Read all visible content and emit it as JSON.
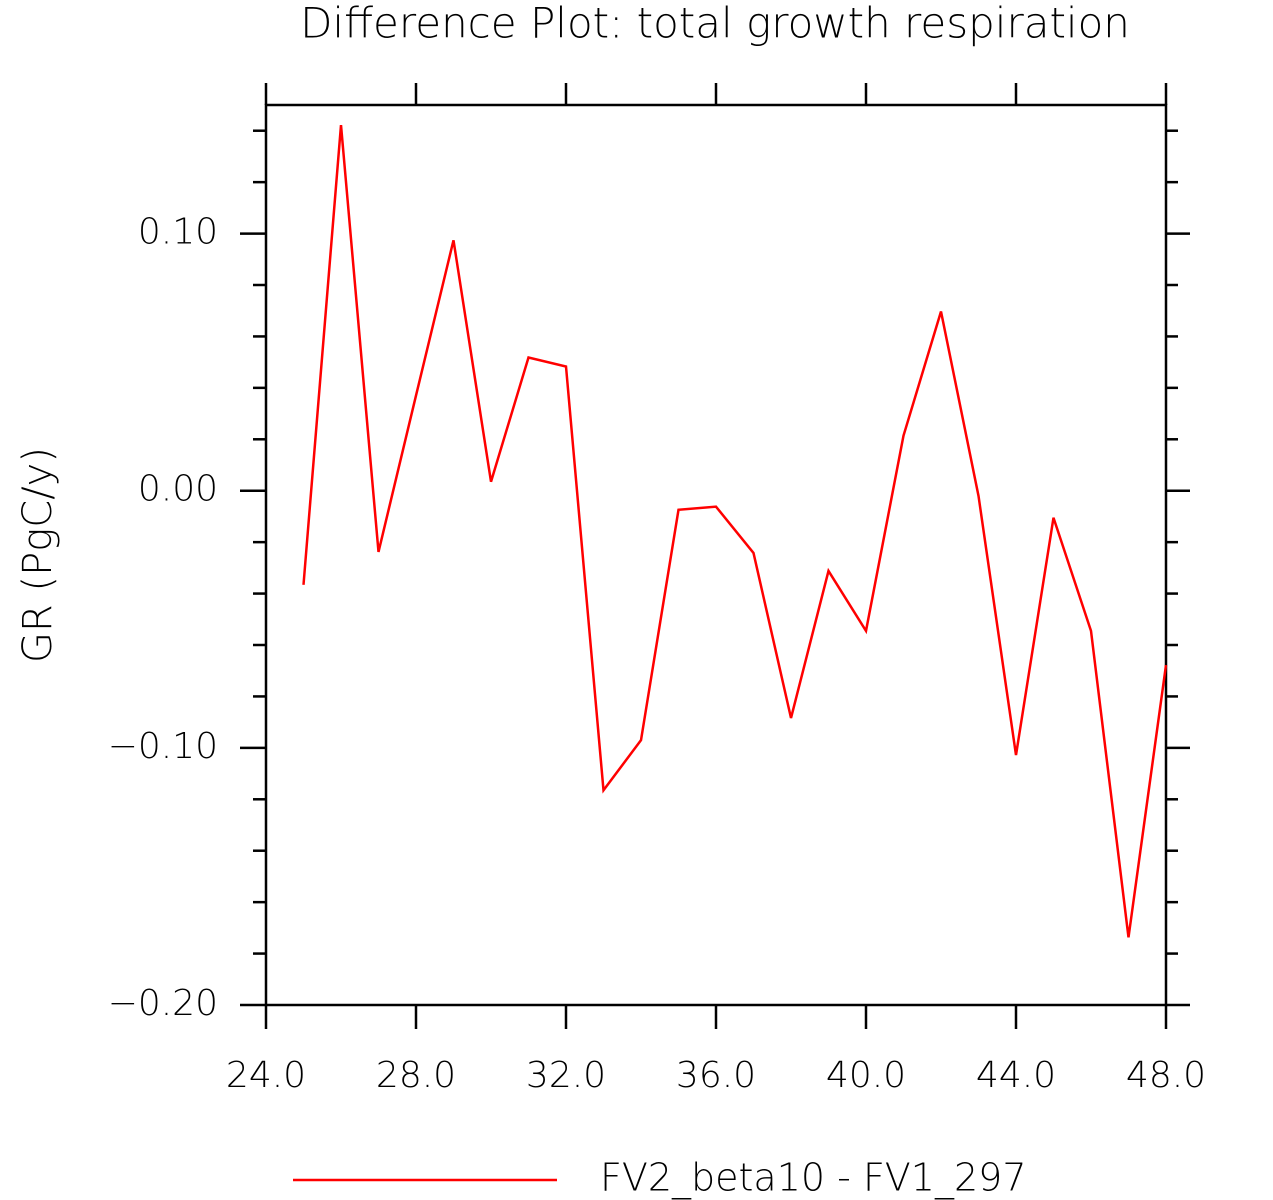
{
  "chart_data": {
    "type": "line",
    "title": "Difference Plot: total growth respiration",
    "y_label": "GR  (PgC/y)",
    "x": [
      25,
      26,
      27,
      28,
      29,
      30,
      31,
      32,
      33,
      34,
      35,
      36,
      37,
      38,
      39,
      40,
      41,
      42,
      43,
      44,
      45,
      46,
      47,
      48
    ],
    "series": [
      {
        "name": "FV2_beta10 - FV1_297",
        "color": "#ff0000",
        "values": [
          -0.0366,
          0.1422,
          -0.0238,
          0.037,
          0.0974,
          0.0035,
          0.0518,
          0.0483,
          -0.1165,
          -0.097,
          -0.0074,
          -0.0062,
          -0.0242,
          -0.0884,
          -0.0312,
          -0.0545,
          0.0214,
          0.0697,
          -0.002,
          -0.1028,
          -0.0105,
          -0.0545,
          -0.1737,
          -0.0678
        ]
      }
    ],
    "xlim": [
      24,
      48
    ],
    "xticks": [
      {
        "value": 24,
        "label": "24.0"
      },
      {
        "value": 28,
        "label": "28.0"
      },
      {
        "value": 32,
        "label": "32.0"
      },
      {
        "value": 36,
        "label": "36.0"
      },
      {
        "value": 40,
        "label": "40.0"
      },
      {
        "value": 44,
        "label": "44.0"
      },
      {
        "value": 48,
        "label": "48.0"
      }
    ],
    "ylim": [
      -0.2,
      0.15
    ],
    "yticks": [
      {
        "value": -0.2,
        "label": "−0.20"
      },
      {
        "value": -0.1,
        "label": "−0.10"
      },
      {
        "value": 0,
        "label": "0.00"
      },
      {
        "value": 0.1,
        "label": "0.10"
      }
    ],
    "yminorticks": [
      -0.18,
      -0.16,
      -0.14,
      -0.12,
      -0.08,
      -0.06,
      -0.04,
      -0.02,
      0.02,
      0.04,
      0.06,
      0.08,
      0.12,
      0.14
    ],
    "legend": "bottom"
  }
}
